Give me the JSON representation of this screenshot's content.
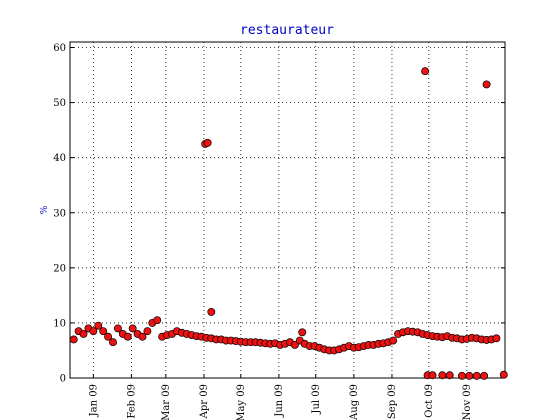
{
  "chart_data": {
    "type": "scatter",
    "title": "restaurateur",
    "y_label": "%",
    "color": "#ee1111",
    "edge_color": "#000000",
    "grid": true,
    "xlim": [
      -19,
      335
    ],
    "ylim": [
      0,
      61
    ],
    "xticks": [
      {
        "value": 0,
        "label": "Jan 09"
      },
      {
        "value": 31,
        "label": "Feb 09"
      },
      {
        "value": 59,
        "label": "Mar 09"
      },
      {
        "value": 90,
        "label": "Apr 09"
      },
      {
        "value": 120,
        "label": "May 09"
      },
      {
        "value": 151,
        "label": "Jun 09"
      },
      {
        "value": 181,
        "label": "Jul 09"
      },
      {
        "value": 212,
        "label": "Aug 09"
      },
      {
        "value": 243,
        "label": "Sep 09"
      },
      {
        "value": 273,
        "label": "Oct 09"
      },
      {
        "value": 304,
        "label": "Nov 09"
      }
    ],
    "yticks": [
      0,
      10,
      20,
      30,
      40,
      50,
      60
    ],
    "x": [
      -16,
      -12,
      -8,
      -4,
      0,
      4,
      8,
      12,
      16,
      20,
      24,
      28,
      32,
      36,
      40,
      44,
      48,
      52,
      56,
      60,
      64,
      68,
      72,
      76,
      80,
      84,
      88,
      92,
      96,
      100,
      104,
      108,
      112,
      116,
      120,
      124,
      128,
      132,
      136,
      140,
      144,
      148,
      152,
      156,
      160,
      164,
      168,
      172,
      176,
      180,
      184,
      188,
      192,
      196,
      200,
      204,
      208,
      212,
      216,
      220,
      224,
      228,
      232,
      236,
      240,
      244,
      248,
      252,
      256,
      260,
      264,
      268,
      272,
      276,
      280,
      284,
      288,
      292,
      296,
      300,
      304,
      308,
      312,
      316,
      320,
      324,
      328,
      91,
      93,
      96,
      170,
      270,
      320,
      272,
      276,
      284,
      290,
      300,
      306,
      312,
      318,
      334
    ],
    "values": [
      7,
      8.5,
      8,
      9,
      8.5,
      9.5,
      8.5,
      7.5,
      6.5,
      9,
      8,
      7.5,
      9,
      8,
      7.5,
      8.5,
      10,
      10.5,
      7.5,
      7.8,
      8,
      8.5,
      8.2,
      8,
      7.8,
      7.6,
      7.5,
      7.3,
      7.2,
      7,
      7,
      6.8,
      6.8,
      6.7,
      6.6,
      6.5,
      6.5,
      6.5,
      6.4,
      6.3,
      6.2,
      6.3,
      6,
      6.2,
      6.5,
      6,
      6.8,
      6.2,
      5.8,
      5.8,
      5.5,
      5.2,
      5,
      5,
      5.2,
      5.5,
      5.8,
      5.5,
      5.6,
      5.8,
      6,
      6,
      6.2,
      6.3,
      6.5,
      6.8,
      8,
      8.3,
      8.5,
      8.4,
      8.3,
      8,
      7.8,
      7.6,
      7.5,
      7.4,
      7.6,
      7.3,
      7.2,
      7,
      7.1,
      7.3,
      7.2,
      7,
      6.9,
      7,
      7.2,
      42.5,
      42.7,
      12,
      8.3,
      55.7,
      53.3,
      0.5,
      0.5,
      0.5,
      0.5,
      0.4,
      0.4,
      0.4,
      0.4,
      0.6
    ]
  }
}
